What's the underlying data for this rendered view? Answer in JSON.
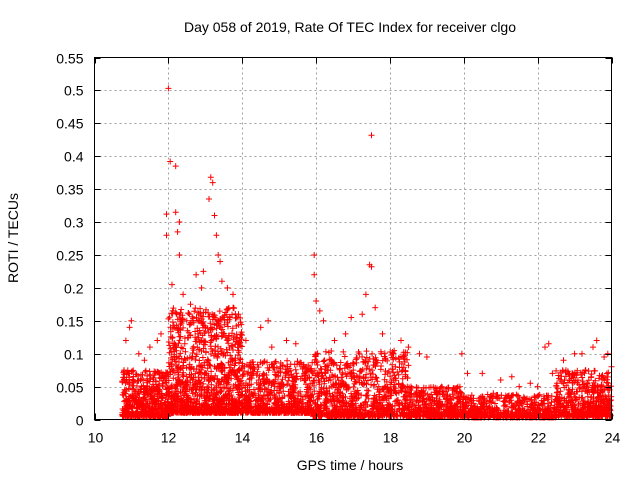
{
  "chart_data": {
    "type": "scatter",
    "title": "Day 058 of 2019, Rate Of TEC Index for receiver clgo",
    "xlabel": "GPS time / hours",
    "ylabel": "ROTI / TECUs",
    "xlim": [
      10,
      24
    ],
    "ylim": [
      0,
      0.55
    ],
    "xticks": [
      10,
      12,
      14,
      16,
      18,
      20,
      22,
      24
    ],
    "xtick_labels": [
      "10",
      "12",
      "14",
      "16",
      "18",
      "20",
      "22",
      "24"
    ],
    "yticks": [
      0,
      0.05,
      0.1,
      0.15,
      0.2,
      0.25,
      0.3,
      0.35,
      0.4,
      0.45,
      0.5,
      0.55
    ],
    "ytick_labels": [
      "0",
      "0.05",
      "0.1",
      "0.15",
      "0.2",
      "0.25",
      "0.3",
      "0.35",
      "0.4",
      "0.45",
      "0.5",
      "0.55"
    ],
    "grid": true,
    "marker": "+",
    "color": "#ff0000",
    "series": [
      {
        "name": "ROTI",
        "points": [
          [
            12.0,
            0.503
          ],
          [
            17.5,
            0.432
          ],
          [
            12.05,
            0.392
          ],
          [
            12.2,
            0.385
          ],
          [
            13.15,
            0.368
          ],
          [
            13.2,
            0.36
          ],
          [
            13.1,
            0.335
          ],
          [
            12.2,
            0.315
          ],
          [
            11.95,
            0.312
          ],
          [
            12.3,
            0.3
          ],
          [
            13.25,
            0.31
          ],
          [
            12.25,
            0.285
          ],
          [
            11.95,
            0.28
          ],
          [
            13.3,
            0.28
          ],
          [
            12.3,
            0.25
          ],
          [
            15.95,
            0.25
          ],
          [
            17.45,
            0.235
          ],
          [
            17.5,
            0.232
          ],
          [
            13.35,
            0.25
          ],
          [
            13.4,
            0.24
          ],
          [
            13.45,
            0.21
          ],
          [
            12.95,
            0.225
          ],
          [
            12.75,
            0.22
          ],
          [
            13.6,
            0.2
          ],
          [
            13.75,
            0.19
          ],
          [
            15.95,
            0.22
          ],
          [
            16.0,
            0.18
          ],
          [
            16.1,
            0.165
          ],
          [
            16.2,
            0.15
          ],
          [
            17.35,
            0.19
          ],
          [
            17.25,
            0.16
          ],
          [
            16.95,
            0.155
          ],
          [
            17.6,
            0.17
          ],
          [
            17.8,
            0.13
          ],
          [
            12.9,
            0.2
          ],
          [
            12.1,
            0.205
          ],
          [
            12.4,
            0.19
          ],
          [
            12.6,
            0.175
          ],
          [
            13.9,
            0.16
          ],
          [
            14.1,
            0.12
          ],
          [
            14.5,
            0.14
          ],
          [
            14.7,
            0.15
          ],
          [
            15.2,
            0.12
          ],
          [
            15.45,
            0.115
          ],
          [
            14.8,
            0.11
          ],
          [
            11.0,
            0.15
          ],
          [
            10.95,
            0.14
          ],
          [
            10.85,
            0.12
          ],
          [
            10.8,
            0.075
          ],
          [
            11.2,
            0.1
          ],
          [
            11.5,
            0.11
          ],
          [
            11.7,
            0.12
          ],
          [
            11.8,
            0.13
          ],
          [
            11.35,
            0.09
          ],
          [
            16.5,
            0.12
          ],
          [
            16.8,
            0.13
          ],
          [
            18.3,
            0.12
          ],
          [
            18.5,
            0.11
          ],
          [
            18.8,
            0.1
          ],
          [
            19.0,
            0.095
          ],
          [
            19.95,
            0.1
          ],
          [
            20.1,
            0.07
          ],
          [
            20.5,
            0.07
          ],
          [
            21.0,
            0.06
          ],
          [
            21.5,
            0.05
          ],
          [
            21.3,
            0.065
          ],
          [
            21.8,
            0.055
          ],
          [
            22.2,
            0.11
          ],
          [
            22.3,
            0.115
          ],
          [
            22.0,
            0.05
          ],
          [
            22.4,
            0.07
          ],
          [
            22.7,
            0.09
          ],
          [
            23.0,
            0.1
          ],
          [
            23.2,
            0.1
          ],
          [
            23.5,
            0.11
          ],
          [
            23.6,
            0.12
          ],
          [
            23.8,
            0.095
          ],
          [
            24.0,
            0.08
          ],
          [
            23.3,
            0.075
          ],
          [
            23.9,
            0.1
          ],
          [
            18.1,
            0.06
          ],
          [
            19.4,
            0.05
          ],
          [
            19.7,
            0.045
          ],
          [
            20.8,
            0.04
          ],
          [
            15.7,
            0.06
          ],
          [
            16.4,
            0.06
          ],
          [
            14.3,
            0.07
          ],
          [
            12.5,
            0.15
          ],
          [
            12.8,
            0.13
          ],
          [
            13.0,
            0.14
          ],
          [
            13.5,
            0.1
          ],
          [
            13.8,
            0.09
          ],
          [
            11.6,
            0.05
          ],
          [
            11.1,
            0.03
          ],
          [
            10.9,
            0.02
          ],
          [
            15.0,
            0.04
          ],
          [
            17.0,
            0.07
          ],
          [
            17.7,
            0.05
          ],
          [
            18.6,
            0.03
          ],
          [
            20.3,
            0.02
          ]
        ]
      }
    ],
    "dense_bands": [
      {
        "x": [
          10.75,
          12.0
        ],
        "y_base": 0.005,
        "y_span": 0.07,
        "count": 550
      },
      {
        "x": [
          12.0,
          14.0
        ],
        "y_base": 0.01,
        "y_span": 0.16,
        "count": 1100
      },
      {
        "x": [
          14.0,
          15.9
        ],
        "y_base": 0.01,
        "y_span": 0.08,
        "count": 650
      },
      {
        "x": [
          15.9,
          18.5
        ],
        "y_base": 0.005,
        "y_span": 0.1,
        "count": 850
      },
      {
        "x": [
          18.5,
          20.0
        ],
        "y_base": 0.005,
        "y_span": 0.045,
        "count": 450
      },
      {
        "x": [
          20.0,
          22.5
        ],
        "y_base": 0.003,
        "y_span": 0.035,
        "count": 550
      },
      {
        "x": [
          22.5,
          24.0
        ],
        "y_base": 0.005,
        "y_span": 0.07,
        "count": 550
      }
    ]
  }
}
